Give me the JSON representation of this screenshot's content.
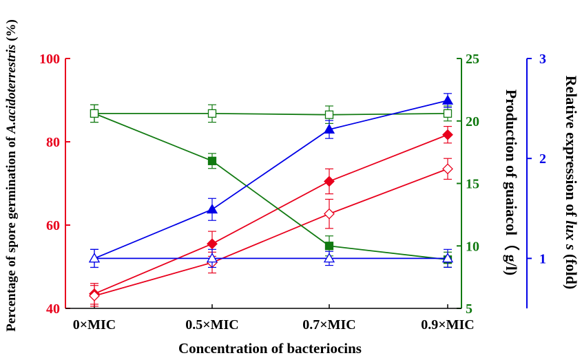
{
  "chart_data": {
    "type": "line",
    "title": "",
    "xlabel": "Concentration of bacteriocins",
    "categories": [
      "0×MIC",
      "0.5×MIC",
      "0.7×MIC",
      "0.9×MIC"
    ],
    "axes": {
      "left": {
        "label_prefix": "Percentage of spore germination of ",
        "label_italic": "A.acidoterrestris",
        "label_suffix": " (%)",
        "ylim": [
          40,
          100
        ],
        "ticks": [
          40,
          60,
          80,
          100
        ],
        "color": "#e8001c"
      },
      "right1": {
        "label": "Production of guaiacol（ g/l)",
        "ylim": [
          5,
          25
        ],
        "ticks": [
          5,
          10,
          15,
          20,
          25
        ],
        "color": "#117a11"
      },
      "right2": {
        "label_prefix": "Relative expression of ",
        "label_italic": "lux s",
        "label_suffix": " (fold)",
        "ylim": [
          0.5,
          3
        ],
        "ticks": [
          1,
          2,
          3
        ],
        "color": "#0000e6"
      }
    },
    "series": [
      {
        "axis": "left",
        "marker": "diamond",
        "filled": true,
        "color": "#e8001c",
        "values": [
          43.5,
          55.5,
          70.5,
          81.7
        ],
        "errors": [
          2.5,
          3.0,
          3.0,
          2.0
        ]
      },
      {
        "axis": "left",
        "marker": "diamond",
        "filled": false,
        "color": "#e8001c",
        "values": [
          43.0,
          51.0,
          62.7,
          73.5
        ],
        "errors": [
          2.5,
          2.5,
          3.5,
          2.5
        ]
      },
      {
        "axis": "right1",
        "marker": "square",
        "filled": true,
        "color": "#117a11",
        "values": [
          20.6,
          16.8,
          10.0,
          8.9
        ],
        "errors": [
          0.7,
          0.6,
          0.8,
          0.6
        ]
      },
      {
        "axis": "right1",
        "marker": "square",
        "filled": false,
        "color": "#117a11",
        "values": [
          20.6,
          20.6,
          20.5,
          20.6
        ],
        "errors": [
          0.7,
          0.7,
          0.7,
          0.6
        ]
      },
      {
        "axis": "right2",
        "marker": "triangle",
        "filled": true,
        "color": "#0000e6",
        "values": [
          1.0,
          1.49,
          2.29,
          2.58
        ],
        "errors": [
          0.09,
          0.11,
          0.09,
          0.07
        ]
      },
      {
        "axis": "right2",
        "marker": "triangle",
        "filled": false,
        "color": "#0000e6",
        "values": [
          1.0,
          1.0,
          1.0,
          1.0
        ],
        "errors": [
          0.09,
          0.09,
          0.07,
          0.09
        ]
      }
    ]
  }
}
